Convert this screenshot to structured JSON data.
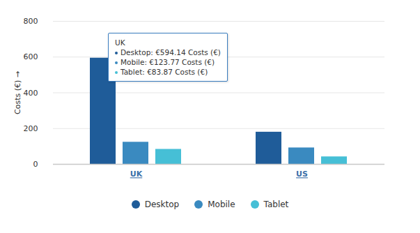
{
  "chart_data": {
    "type": "bar",
    "y_label": "Costs (€)",
    "categories": [
      "UK",
      "US"
    ],
    "series": [
      {
        "name": "Desktop",
        "color": "#1f5c99",
        "values": [
          594.14,
          180
        ]
      },
      {
        "name": "Mobile",
        "color": "#3a8ac0",
        "values": [
          123.77,
          92
        ]
      },
      {
        "name": "Tablet",
        "color": "#46bfd6",
        "values": [
          83.87,
          42
        ]
      }
    ],
    "ylim": [
      0,
      800
    ],
    "yticks": [
      0,
      200,
      400,
      600,
      800
    ],
    "grid": true,
    "legend": "bottom",
    "annotations": [
      {
        "title": "UK",
        "lines": [
          "Desktop: €594.14 Costs (€)",
          "Mobile: €123.77 Costs (€)",
          "Tablet: €83.87 Costs (€)"
        ]
      }
    ]
  }
}
